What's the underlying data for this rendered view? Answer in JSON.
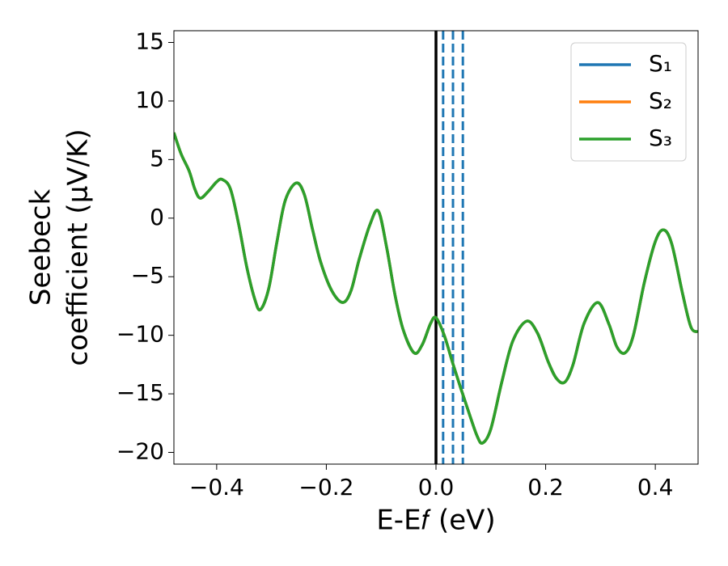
{
  "chart_data": {
    "type": "line",
    "xlabel": "E-E𝑓 (eV)",
    "ylabel": [
      "Seebeck",
      "coefficient  (μV/K)"
    ],
    "x": [
      -0.478,
      -0.465,
      -0.45,
      -0.44,
      -0.43,
      -0.415,
      -0.4,
      -0.39,
      -0.375,
      -0.36,
      -0.345,
      -0.33,
      -0.32,
      -0.305,
      -0.29,
      -0.275,
      -0.255,
      -0.24,
      -0.225,
      -0.21,
      -0.19,
      -0.17,
      -0.155,
      -0.14,
      -0.12,
      -0.105,
      -0.09,
      -0.075,
      -0.06,
      -0.04,
      -0.025,
      -0.01,
      0.0,
      0.015,
      0.03,
      0.045,
      0.06,
      0.075,
      0.085,
      0.1,
      0.12,
      0.14,
      0.165,
      0.185,
      0.205,
      0.22,
      0.235,
      0.25,
      0.27,
      0.295,
      0.315,
      0.33,
      0.345,
      0.36,
      0.38,
      0.4,
      0.415,
      0.43,
      0.45,
      0.465,
      0.478
    ],
    "series": [
      {
        "name": "S₁",
        "color": "#1f77b4",
        "values": [
          7.3,
          5.5,
          4.0,
          2.5,
          1.7,
          2.3,
          3.1,
          3.3,
          2.5,
          -0.5,
          -4.2,
          -7.0,
          -7.8,
          -6.0,
          -2.0,
          1.5,
          3.0,
          2.0,
          -1.0,
          -3.8,
          -6.2,
          -7.2,
          -6.2,
          -3.5,
          -0.5,
          0.6,
          -2.5,
          -6.5,
          -9.5,
          -11.5,
          -10.8,
          -9.0,
          -8.5,
          -10.0,
          -12.3,
          -14.5,
          -16.6,
          -18.6,
          -19.2,
          -18.0,
          -14.0,
          -10.5,
          -8.8,
          -9.8,
          -12.3,
          -13.7,
          -14.0,
          -12.5,
          -9.0,
          -7.2,
          -9.0,
          -11.0,
          -11.5,
          -10.0,
          -5.5,
          -2.0,
          -1.0,
          -2.2,
          -6.5,
          -9.3,
          -9.7
        ]
      },
      {
        "name": "S₂",
        "color": "#ff7f0e",
        "values": [
          7.3,
          5.5,
          4.0,
          2.5,
          1.7,
          2.3,
          3.1,
          3.3,
          2.5,
          -0.5,
          -4.2,
          -7.0,
          -7.8,
          -6.0,
          -2.0,
          1.5,
          3.0,
          2.0,
          -1.0,
          -3.8,
          -6.2,
          -7.2,
          -6.2,
          -3.5,
          -0.5,
          0.6,
          -2.5,
          -6.5,
          -9.5,
          -11.5,
          -10.8,
          -9.0,
          -8.5,
          -10.0,
          -12.3,
          -14.5,
          -16.6,
          -18.6,
          -19.2,
          -18.0,
          -14.0,
          -10.5,
          -8.8,
          -9.8,
          -12.3,
          -13.7,
          -14.0,
          -12.5,
          -9.0,
          -7.2,
          -9.0,
          -11.0,
          -11.5,
          -10.0,
          -5.5,
          -2.0,
          -1.0,
          -2.2,
          -6.5,
          -9.3,
          -9.7
        ]
      },
      {
        "name": "S₃",
        "color": "#2ca02c",
        "values": [
          7.3,
          5.5,
          4.0,
          2.5,
          1.7,
          2.3,
          3.1,
          3.3,
          2.5,
          -0.5,
          -4.2,
          -7.0,
          -7.8,
          -6.0,
          -2.0,
          1.5,
          3.0,
          2.0,
          -1.0,
          -3.8,
          -6.2,
          -7.2,
          -6.2,
          -3.5,
          -0.5,
          0.6,
          -2.5,
          -6.5,
          -9.5,
          -11.5,
          -10.8,
          -9.0,
          -8.5,
          -10.0,
          -12.3,
          -14.5,
          -16.6,
          -18.6,
          -19.2,
          -18.0,
          -14.0,
          -10.5,
          -8.8,
          -9.8,
          -12.3,
          -13.7,
          -14.0,
          -12.5,
          -9.0,
          -7.2,
          -9.0,
          -11.0,
          -11.5,
          -10.0,
          -5.5,
          -2.0,
          -1.0,
          -2.2,
          -6.5,
          -9.3,
          -9.7
        ]
      }
    ],
    "vlines": [
      {
        "x": 0,
        "color": "#000000",
        "style": "solid"
      },
      {
        "x": 0.013,
        "color": "#1f77b4",
        "style": "dashed"
      },
      {
        "x": 0.031,
        "color": "#1f77b4",
        "style": "dashed"
      },
      {
        "x": 0.049,
        "color": "#1f77b4",
        "style": "dashed"
      }
    ],
    "xlim": [
      -0.478,
      0.478
    ],
    "ylim": [
      -21,
      16
    ],
    "xticks": [
      {
        "value": -0.4,
        "label": "−0.4"
      },
      {
        "value": -0.2,
        "label": "−0.2"
      },
      {
        "value": 0.0,
        "label": "0.0"
      },
      {
        "value": 0.2,
        "label": "0.2"
      },
      {
        "value": 0.4,
        "label": "0.4"
      }
    ],
    "yticks": [
      {
        "value": -20,
        "label": "−20"
      },
      {
        "value": -15,
        "label": "−15"
      },
      {
        "value": -10,
        "label": "−10"
      },
      {
        "value": -5,
        "label": "−5"
      },
      0,
      5,
      10,
      15
    ],
    "legend": "upper right",
    "grid": false
  }
}
